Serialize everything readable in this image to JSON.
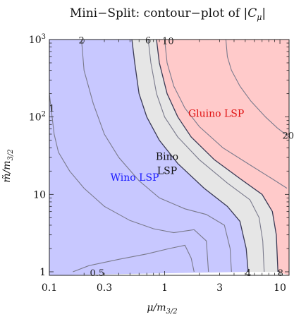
{
  "chart_data": {
    "type": "contour",
    "title": "Mini−Split: contour−plot of |C_μ|",
    "title_parts": {
      "prefix": "Mini−Split: contour−plot of |",
      "symbol": "C",
      "subscript": "μ",
      "suffix": "|"
    },
    "xlabel": {
      "base": "μ",
      "sub": "3/2",
      "text": "μ/m3/2"
    },
    "ylabel": {
      "base": "m̃",
      "sub": "3/2",
      "text": "m̃/m3/2"
    },
    "x_scale": "log",
    "y_scale": "log",
    "xlim": [
      0.1,
      12
    ],
    "ylim": [
      0.9,
      1000
    ],
    "x_ticks": [
      {
        "value": 0.1,
        "label": "0.1"
      },
      {
        "value": 0.3,
        "label": "0.3"
      },
      {
        "value": 1,
        "label": "1"
      },
      {
        "value": 3,
        "label": "3"
      },
      {
        "value": 10,
        "label": "10"
      }
    ],
    "y_ticks": [
      {
        "value": 1,
        "label": "1"
      },
      {
        "value": 10,
        "label": "10"
      },
      {
        "value": 100,
        "label": "10",
        "exp": "2"
      },
      {
        "value": 1000,
        "label": "10",
        "exp": "3"
      }
    ],
    "regions": [
      {
        "name": "Wino LSP",
        "color": "#c8c8ff",
        "text_color": "#1a1aff",
        "label_at": [
          0.55,
          15
        ]
      },
      {
        "name": "Bino",
        "name2": "LSP",
        "color": "#e6e6e6",
        "text_color": "#111111",
        "label_at": [
          1.05,
          28
        ]
      },
      {
        "name": "Gluino LSP",
        "color": "#ffcaca",
        "text_color": "#e01010",
        "label_at": [
          2.8,
          100
        ]
      }
    ],
    "boundaries": [
      {
        "name": "wino-bino",
        "points": [
          [
            0.52,
            1000
          ],
          [
            0.55,
            500
          ],
          [
            0.6,
            200
          ],
          [
            0.7,
            100
          ],
          [
            0.9,
            50
          ],
          [
            1.3,
            25
          ],
          [
            2.2,
            12
          ],
          [
            3.5,
            7
          ],
          [
            4.5,
            4.5
          ],
          [
            5.1,
            2
          ],
          [
            5.3,
            1
          ]
        ]
      },
      {
        "name": "bino-gluino",
        "points": [
          [
            0.85,
            1000
          ],
          [
            0.9,
            500
          ],
          [
            1.05,
            200
          ],
          [
            1.3,
            100
          ],
          [
            1.7,
            55
          ],
          [
            2.7,
            28
          ],
          [
            4.5,
            16
          ],
          [
            7,
            10
          ],
          [
            8.6,
            6
          ],
          [
            9.3,
            3
          ],
          [
            9.6,
            1
          ]
        ]
      }
    ],
    "contours": [
      {
        "level": "0.5",
        "points": [
          [
            0.16,
            1
          ],
          [
            0.22,
            1.2
          ],
          [
            0.4,
            1.45
          ],
          [
            0.7,
            1.7
          ],
          [
            1.1,
            2.0
          ],
          [
            1.5,
            2.2
          ],
          [
            1.7,
            1.5
          ],
          [
            1.8,
            1
          ]
        ],
        "label_at": [
          0.26,
          0.98
        ]
      },
      {
        "level": "1",
        "points": [
          [
            0.1,
            200
          ],
          [
            0.11,
            60
          ],
          [
            0.12,
            35
          ],
          [
            0.15,
            20
          ],
          [
            0.2,
            12
          ],
          [
            0.3,
            7
          ],
          [
            0.5,
            4.6
          ],
          [
            0.8,
            3.6
          ],
          [
            1.2,
            3.2
          ],
          [
            1.8,
            3.5
          ],
          [
            2.3,
            2.5
          ],
          [
            2.4,
            1
          ]
        ],
        "label_at": [
          0.105,
          130
        ]
      },
      {
        "level": "2",
        "points": [
          [
            0.19,
            1000
          ],
          [
            0.2,
            400
          ],
          [
            0.24,
            150
          ],
          [
            0.3,
            60
          ],
          [
            0.4,
            30
          ],
          [
            0.6,
            15
          ],
          [
            0.9,
            9
          ],
          [
            1.5,
            6.5
          ],
          [
            2.3,
            5.5
          ],
          [
            3.3,
            4
          ],
          [
            3.7,
            2
          ],
          [
            3.8,
            1
          ]
        ],
        "label_at": [
          0.19,
          990
        ]
      },
      {
        "level": "4",
        "points": [
          [
            0.52,
            1000
          ],
          [
            0.55,
            500
          ],
          [
            0.6,
            200
          ],
          [
            0.7,
            100
          ],
          [
            0.9,
            50
          ],
          [
            1.3,
            25
          ],
          [
            2.2,
            12
          ],
          [
            3.5,
            7
          ],
          [
            4.5,
            4.5
          ],
          [
            5.1,
            2
          ],
          [
            5.3,
            1
          ]
        ],
        "label_at": [
          5.3,
          0.98
        ]
      },
      {
        "level": "6",
        "points": [
          [
            0.72,
            1000
          ],
          [
            0.76,
            500
          ],
          [
            0.85,
            200
          ],
          [
            1.0,
            100
          ],
          [
            1.3,
            55
          ],
          [
            2.0,
            28
          ],
          [
            3.5,
            14
          ],
          [
            5.5,
            8.5
          ],
          [
            6.6,
            5
          ],
          [
            7.1,
            2.5
          ],
          [
            7.3,
            1
          ]
        ],
        "label_at": [
          0.72,
          990
        ]
      },
      {
        "level": "8",
        "points": [
          [
            0.85,
            1000
          ],
          [
            0.9,
            500
          ],
          [
            1.05,
            200
          ],
          [
            1.3,
            100
          ],
          [
            1.7,
            55
          ],
          [
            2.7,
            28
          ],
          [
            4.5,
            16
          ],
          [
            7,
            10
          ],
          [
            8.6,
            6
          ],
          [
            9.3,
            3
          ],
          [
            9.6,
            1
          ]
        ],
        "label_at": [
          10.1,
          0.98
        ]
      },
      {
        "level": "10",
        "points": [
          [
            1.0,
            1000
          ],
          [
            1.05,
            500
          ],
          [
            1.2,
            250
          ],
          [
            1.5,
            130
          ],
          [
            2.0,
            75
          ],
          [
            3.2,
            40
          ],
          [
            5.5,
            24
          ],
          [
            8.5,
            16
          ],
          [
            11.5,
            12
          ]
        ],
        "label_at": [
          1.07,
          970
        ]
      },
      {
        "level": "20",
        "points": [
          [
            3.4,
            1000
          ],
          [
            3.5,
            600
          ],
          [
            3.8,
            400
          ],
          [
            4.5,
            250
          ],
          [
            5.6,
            160
          ],
          [
            7.5,
            100
          ],
          [
            9.5,
            72
          ],
          [
            12,
            55
          ]
        ],
        "label_at": [
          11.8,
          58
        ]
      }
    ]
  }
}
